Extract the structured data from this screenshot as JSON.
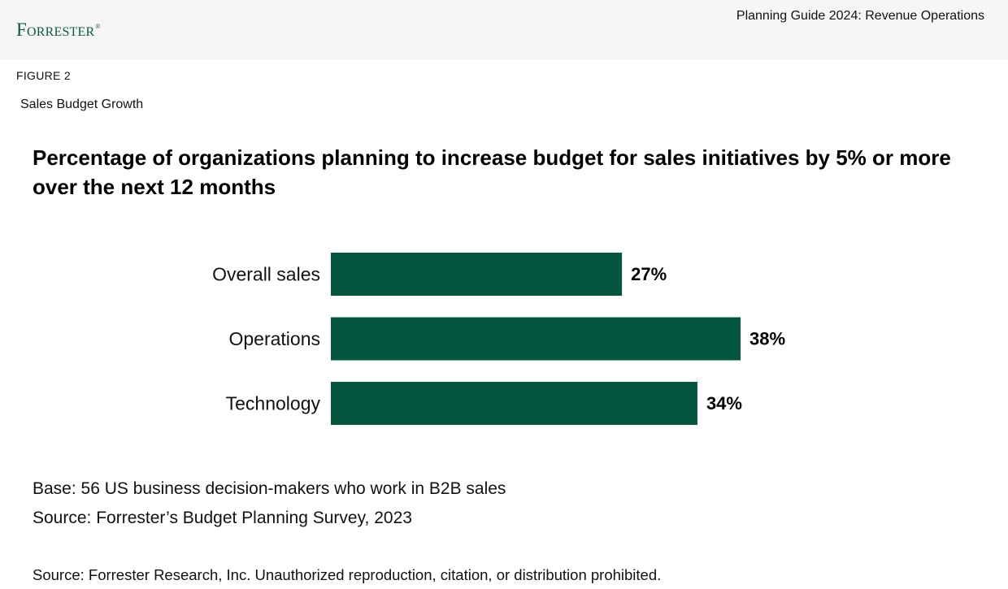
{
  "header": {
    "logo_text": "Forrester",
    "logo_mark": "®",
    "doc_title": "Planning Guide 2024: Revenue Operations"
  },
  "figure": {
    "label": "FIGURE 2",
    "title": "Sales Budget Growth"
  },
  "chart_data": {
    "type": "bar",
    "orientation": "horizontal",
    "title": "Percentage of organizations planning to increase budget for sales initiatives by 5% or more over the next 12 months",
    "categories": [
      "Overall sales",
      "Operations",
      "Technology"
    ],
    "values": [
      27,
      38,
      34
    ],
    "value_labels": [
      "27%",
      "38%",
      "34%"
    ],
    "unit": "%",
    "xlim": [
      0,
      100
    ],
    "grid": false,
    "legend": "none",
    "bar_color": "#03573f"
  },
  "notes": {
    "base": "Base: 56 US business decision-makers who work in B2B sales",
    "source": "Source: Forrester’s Budget Planning Survey, 2023"
  },
  "footer": {
    "text": "Source: Forrester Research, Inc. Unauthorized reproduction, citation, or distribution prohibited."
  }
}
